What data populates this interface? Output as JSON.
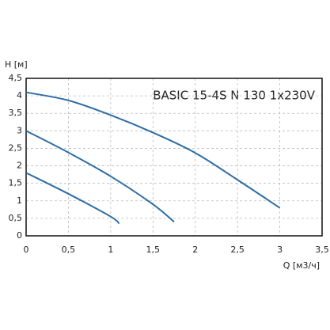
{
  "chart_data": {
    "type": "line",
    "title": "BASIC 15-4S N 130 1x230V",
    "y_label": "H [м]",
    "x_label": "Q [м3/ч]",
    "xlim": [
      0,
      3.5
    ],
    "ylim": [
      0,
      4.5
    ],
    "xticks": [
      0,
      {
        "value": 0.5,
        "label": "0,5"
      },
      1,
      {
        "value": 1.5,
        "label": "1,5"
      },
      2,
      {
        "value": 2.5,
        "label": "2,5"
      },
      3,
      {
        "value": 3.5,
        "label": "3,5"
      }
    ],
    "yticks": [
      0,
      {
        "value": 0.5,
        "label": "0,5"
      },
      1,
      {
        "value": 1.5,
        "label": "1,5"
      },
      2,
      {
        "value": 2.5,
        "label": "2,5"
      },
      3,
      {
        "value": 3.5,
        "label": "3,5"
      },
      4,
      {
        "value": 4.5,
        "label": "4,5"
      }
    ],
    "grid": true,
    "series": [
      {
        "color": "#2e6da4",
        "x": [
          0,
          0.5,
          1,
          1.5,
          2,
          2.5,
          3
        ],
        "values": [
          4.1,
          3.87,
          3.45,
          2.95,
          2.37,
          1.6,
          0.8
        ]
      },
      {
        "color": "#2e6da4",
        "x": [
          0,
          0.5,
          1,
          1.5,
          1.75
        ],
        "values": [
          3,
          2.38,
          1.7,
          0.9,
          0.4
        ]
      },
      {
        "color": "#2e6da4",
        "x": [
          0,
          0.5,
          1,
          1.1
        ],
        "values": [
          1.8,
          1.2,
          0.55,
          0.35
        ]
      }
    ]
  }
}
